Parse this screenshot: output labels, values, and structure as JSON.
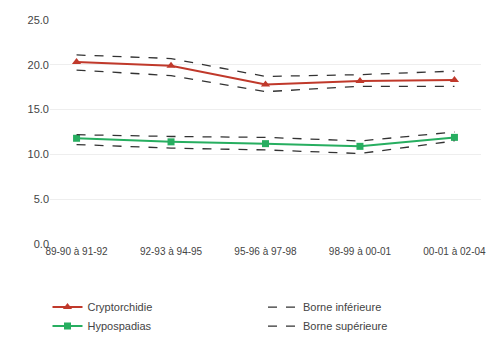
{
  "chart_data": {
    "type": "line",
    "categories": [
      "89-90 à 91-92",
      "92-93 à 94-95",
      "95-96 à 97-98",
      "98-99 à 00-01",
      "00-01 à 02-04"
    ],
    "series": [
      {
        "name": "Cryptorchidie",
        "color": "#c0392b",
        "marker": "triangle-up",
        "line_style": "solid",
        "values": [
          20.3,
          19.9,
          17.8,
          18.2,
          18.3
        ]
      },
      {
        "name": "Borne inférieure",
        "color": "#333333",
        "line_style": "dashed",
        "values": [
          19.4,
          18.8,
          17.0,
          17.6,
          17.6
        ]
      },
      {
        "name": "Hypospadias",
        "color": "#27ae60",
        "marker": "square",
        "line_style": "solid",
        "values": [
          11.8,
          11.4,
          11.2,
          10.9,
          11.9
        ]
      },
      {
        "name": "Borne supérieure",
        "color": "#333333",
        "line_style": "dashed",
        "values": [
          21.1,
          20.7,
          18.7,
          18.9,
          19.3
        ]
      },
      {
        "name": "Borne inférieure",
        "color": "#333333",
        "line_style": "dashed",
        "values": [
          11.1,
          10.7,
          10.5,
          10.1,
          11.5
        ]
      },
      {
        "name": "Borne supérieure",
        "color": "#333333",
        "line_style": "dashed",
        "values": [
          12.2,
          12.0,
          11.9,
          11.5,
          12.5
        ]
      }
    ],
    "ylim": [
      0.0,
      25.0
    ],
    "yticks": [
      {
        "value": 0.0,
        "label": "0.0"
      },
      {
        "value": 5.0,
        "label": "5.0"
      },
      {
        "value": 10.0,
        "label": "10.0"
      },
      {
        "value": 15.0,
        "label": "15.0"
      },
      {
        "value": 20.0,
        "label": "20.0"
      },
      {
        "value": 25.0,
        "label": "25.0"
      }
    ],
    "grid": true,
    "legend": "bottom"
  }
}
